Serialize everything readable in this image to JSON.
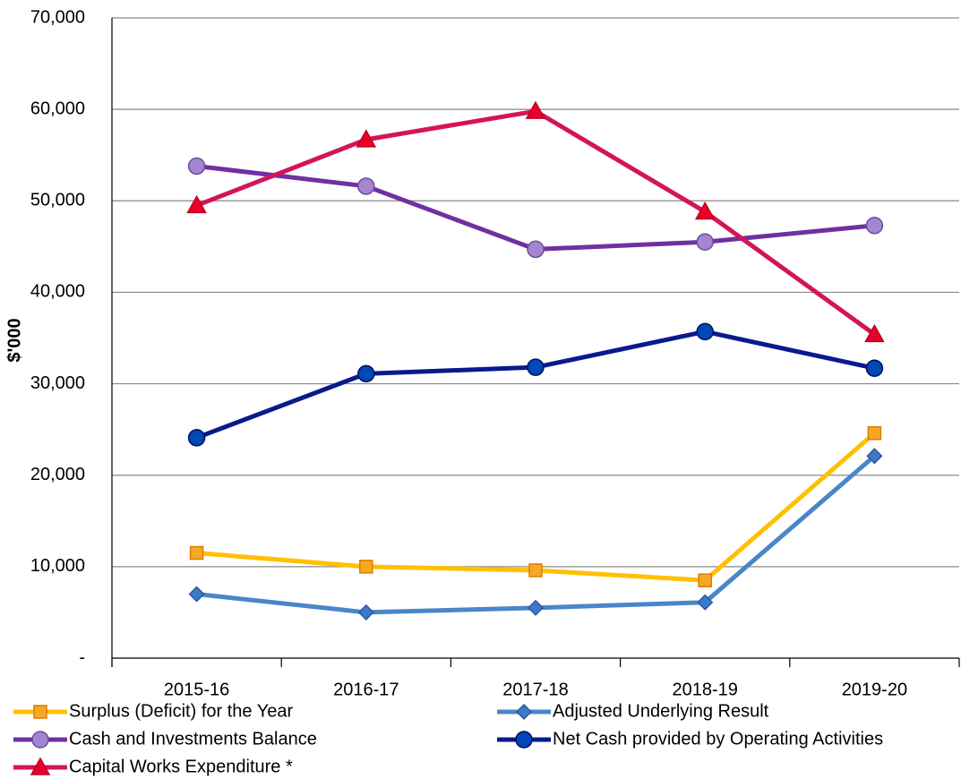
{
  "chart_data": {
    "type": "line",
    "y_label": "$'000",
    "categories": [
      "2015-16",
      "2016-17",
      "2017-18",
      "2018-19",
      "2019-20"
    ],
    "series": [
      {
        "name": "Surplus (Deficit) for the Year",
        "color": "#ffc000",
        "marker": "square",
        "marker_color": "#f7a823",
        "values": [
          11500,
          10000,
          9600,
          8500,
          24600
        ]
      },
      {
        "name": "Adjusted Underlying Result",
        "color": "#4a86c8",
        "marker": "diamond",
        "marker_color": "#3e78c8",
        "values": [
          7000,
          5000,
          5500,
          6100,
          22100
        ]
      },
      {
        "name": "Cash and Investments Balance",
        "color": "#7030a0",
        "marker": "circle",
        "marker_color": "#a385d0",
        "values": [
          53800,
          51600,
          44700,
          45500,
          47300
        ]
      },
      {
        "name": "Net Cash provided by Operating Activities",
        "color": "#0a1a8c",
        "marker": "circle",
        "marker_color": "#0047b8",
        "values": [
          24100,
          31100,
          31800,
          35700,
          31700
        ]
      },
      {
        "name": "Capital Works Expenditure *",
        "color": "#d4145a",
        "marker": "triangle",
        "marker_color": "#e8002a",
        "values": [
          49500,
          56700,
          59800,
          48800,
          35400
        ]
      }
    ],
    "ylim": [
      0,
      70000
    ],
    "yticks": [
      {
        "value": 0,
        "label": "-"
      },
      {
        "value": 10000,
        "label": "10,000"
      },
      {
        "value": 20000,
        "label": "20,000"
      },
      {
        "value": 30000,
        "label": "30,000"
      },
      {
        "value": 40000,
        "label": "40,000"
      },
      {
        "value": 50000,
        "label": "50,000"
      },
      {
        "value": 60000,
        "label": "60,000"
      },
      {
        "value": 70000,
        "label": "70,000"
      }
    ],
    "grid": true,
    "legend": "bottom"
  }
}
